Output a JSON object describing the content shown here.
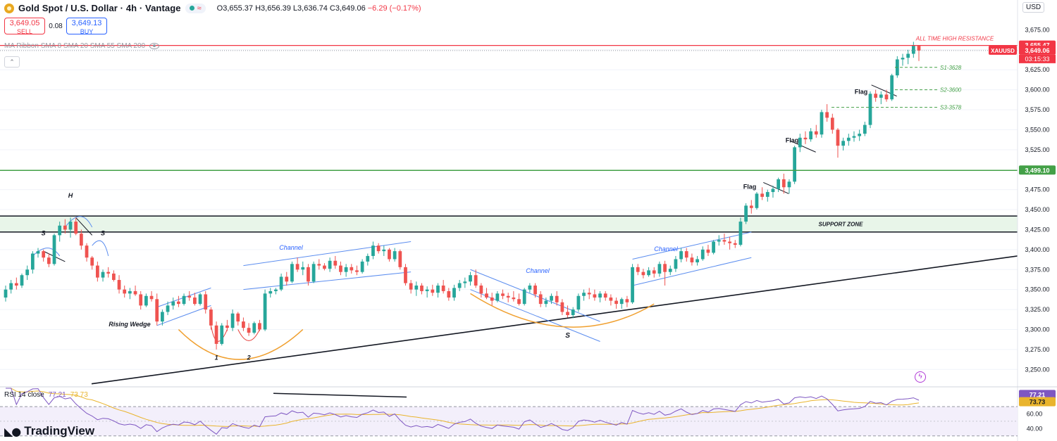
{
  "header": {
    "title": "Gold Spot / U.S. Dollar · 4h · Vantage",
    "open": "O3,655.37",
    "high": "H3,656.39",
    "low": "L3,636.74",
    "close": "C3,649.06",
    "change": "−6.29 (−0.17%)"
  },
  "trade": {
    "sell_price": "3,649.05",
    "sell_label": "SELL",
    "spread": "0.08",
    "buy_price": "3,649.13",
    "buy_label": "BUY"
  },
  "ma_legend": "MA Ribbon SMA 8 SMA 20 SMA 55 SMA 200",
  "currency": "USD",
  "rsi_legend": {
    "label": "RSI 14 close",
    "rsi": "77.21",
    "ma": "73.73"
  },
  "brand": "TradingView",
  "colors": {
    "up": "#26a69a",
    "down": "#ef5350",
    "resistance": "#f23645",
    "support": "#43a047",
    "rsi": "#7e57c2",
    "rsi_ma": "#e9b42d",
    "channel": "#5b8def",
    "pattern": "#f0a030"
  },
  "chart_data": {
    "type": "candlestick",
    "symbol": "XAUUSD",
    "interval": "4h",
    "ylim": [
      3230,
      3700
    ],
    "y_ticks": [
      "3,650.00",
      "3,625.00",
      "3,600.00",
      "3,575.00",
      "3,550.00",
      "3,525.00",
      "3,475.00",
      "3,450.00",
      "3,425.00",
      "3,400.00",
      "3,375.00",
      "3,350.00",
      "3,325.00",
      "3,300.00",
      "3,275.00",
      "3,250.00"
    ],
    "y_tick_values": [
      3650,
      3625,
      3600,
      3575,
      3550,
      3525,
      3475,
      3450,
      3425,
      3400,
      3375,
      3350,
      3325,
      3300,
      3275,
      3250
    ],
    "top_tick": "3,675.00",
    "top_tick_value": 3675,
    "candles": [
      [
        3340,
        3355,
        3335,
        3350
      ],
      [
        3350,
        3362,
        3345,
        3358
      ],
      [
        3358,
        3365,
        3350,
        3355
      ],
      [
        3355,
        3370,
        3352,
        3368
      ],
      [
        3368,
        3380,
        3362,
        3375
      ],
      [
        3375,
        3398,
        3370,
        3395
      ],
      [
        3395,
        3402,
        3390,
        3398
      ],
      [
        3398,
        3400,
        3385,
        3390
      ],
      [
        3390,
        3395,
        3378,
        3382
      ],
      [
        3382,
        3420,
        3380,
        3418
      ],
      [
        3418,
        3435,
        3410,
        3430
      ],
      [
        3430,
        3438,
        3420,
        3425
      ],
      [
        3425,
        3440,
        3415,
        3435
      ],
      [
        3435,
        3440,
        3418,
        3420
      ],
      [
        3420,
        3425,
        3400,
        3405
      ],
      [
        3405,
        3408,
        3385,
        3390
      ],
      [
        3390,
        3392,
        3375,
        3380
      ],
      [
        3380,
        3385,
        3360,
        3365
      ],
      [
        3365,
        3375,
        3360,
        3372
      ],
      [
        3372,
        3378,
        3365,
        3370
      ],
      [
        3370,
        3374,
        3360,
        3362
      ],
      [
        3362,
        3368,
        3345,
        3350
      ],
      [
        3350,
        3355,
        3340,
        3345
      ],
      [
        3345,
        3352,
        3338,
        3348
      ],
      [
        3348,
        3355,
        3342,
        3344
      ],
      [
        3344,
        3348,
        3325,
        3330
      ],
      [
        3330,
        3345,
        3328,
        3342
      ],
      [
        3342,
        3348,
        3335,
        3338
      ],
      [
        3338,
        3345,
        3305,
        3310
      ],
      [
        3310,
        3325,
        3305,
        3322
      ],
      [
        3322,
        3335,
        3318,
        3330
      ],
      [
        3330,
        3340,
        3325,
        3335
      ],
      [
        3335,
        3342,
        3328,
        3332
      ],
      [
        3332,
        3345,
        3330,
        3342
      ],
      [
        3342,
        3348,
        3336,
        3340
      ],
      [
        3340,
        3346,
        3330,
        3332
      ],
      [
        3332,
        3346,
        3330,
        3344
      ],
      [
        3344,
        3348,
        3320,
        3325
      ],
      [
        3325,
        3328,
        3300,
        3305
      ],
      [
        3305,
        3310,
        3275,
        3282
      ],
      [
        3282,
        3308,
        3280,
        3305
      ],
      [
        3305,
        3312,
        3298,
        3302
      ],
      [
        3302,
        3325,
        3298,
        3320
      ],
      [
        3320,
        3322,
        3305,
        3310
      ],
      [
        3310,
        3315,
        3298,
        3302
      ],
      [
        3302,
        3308,
        3292,
        3296
      ],
      [
        3296,
        3310,
        3294,
        3308
      ],
      [
        3308,
        3312,
        3298,
        3300
      ],
      [
        3300,
        3350,
        3298,
        3345
      ],
      [
        3345,
        3352,
        3340,
        3348
      ],
      [
        3348,
        3352,
        3344,
        3350
      ],
      [
        3350,
        3370,
        3348,
        3366
      ],
      [
        3366,
        3372,
        3355,
        3360
      ],
      [
        3360,
        3385,
        3358,
        3382
      ],
      [
        3382,
        3390,
        3372,
        3375
      ],
      [
        3375,
        3385,
        3368,
        3378
      ],
      [
        3378,
        3382,
        3355,
        3360
      ],
      [
        3360,
        3385,
        3358,
        3382
      ],
      [
        3382,
        3388,
        3375,
        3380
      ],
      [
        3380,
        3383,
        3374,
        3376
      ],
      [
        3376,
        3390,
        3372,
        3386
      ],
      [
        3386,
        3392,
        3376,
        3380
      ],
      [
        3380,
        3385,
        3368,
        3372
      ],
      [
        3372,
        3382,
        3366,
        3378
      ],
      [
        3378,
        3382,
        3370,
        3374
      ],
      [
        3374,
        3380,
        3368,
        3372
      ],
      [
        3372,
        3388,
        3370,
        3385
      ],
      [
        3385,
        3395,
        3380,
        3392
      ],
      [
        3392,
        3410,
        3388,
        3405
      ],
      [
        3405,
        3408,
        3395,
        3398
      ],
      [
        3398,
        3405,
        3392,
        3400
      ],
      [
        3400,
        3402,
        3385,
        3388
      ],
      [
        3388,
        3402,
        3385,
        3398
      ],
      [
        3398,
        3400,
        3375,
        3378
      ],
      [
        3378,
        3382,
        3355,
        3358
      ],
      [
        3358,
        3362,
        3345,
        3350
      ],
      [
        3350,
        3360,
        3342,
        3355
      ],
      [
        3355,
        3358,
        3344,
        3348
      ],
      [
        3348,
        3354,
        3340,
        3350
      ],
      [
        3350,
        3356,
        3342,
        3346
      ],
      [
        3346,
        3358,
        3340,
        3355
      ],
      [
        3355,
        3362,
        3345,
        3348
      ],
      [
        3348,
        3352,
        3336,
        3340
      ],
      [
        3340,
        3356,
        3336,
        3352
      ],
      [
        3352,
        3362,
        3348,
        3358
      ],
      [
        3358,
        3365,
        3352,
        3360
      ],
      [
        3360,
        3372,
        3355,
        3368
      ],
      [
        3368,
        3375,
        3352,
        3355
      ],
      [
        3355,
        3358,
        3340,
        3345
      ],
      [
        3345,
        3352,
        3338,
        3340
      ],
      [
        3340,
        3346,
        3330,
        3336
      ],
      [
        3336,
        3348,
        3334,
        3345
      ],
      [
        3345,
        3350,
        3338,
        3342
      ],
      [
        3342,
        3346,
        3334,
        3340
      ],
      [
        3340,
        3348,
        3335,
        3338
      ],
      [
        3338,
        3345,
        3330,
        3332
      ],
      [
        3332,
        3352,
        3330,
        3350
      ],
      [
        3350,
        3358,
        3346,
        3355
      ],
      [
        3355,
        3358,
        3340,
        3344
      ],
      [
        3344,
        3348,
        3328,
        3332
      ],
      [
        3332,
        3340,
        3328,
        3336
      ],
      [
        3336,
        3345,
        3332,
        3342
      ],
      [
        3342,
        3348,
        3330,
        3334
      ],
      [
        3334,
        3338,
        3318,
        3322
      ],
      [
        3322,
        3330,
        3315,
        3318
      ],
      [
        3318,
        3328,
        3314,
        3325
      ],
      [
        3325,
        3345,
        3322,
        3342
      ],
      [
        3342,
        3350,
        3336,
        3346
      ],
      [
        3346,
        3352,
        3338,
        3344
      ],
      [
        3344,
        3350,
        3336,
        3340
      ],
      [
        3340,
        3348,
        3334,
        3345
      ],
      [
        3345,
        3348,
        3336,
        3340
      ],
      [
        3340,
        3344,
        3330,
        3336
      ],
      [
        3336,
        3340,
        3326,
        3332
      ],
      [
        3332,
        3340,
        3326,
        3338
      ],
      [
        3338,
        3342,
        3328,
        3334
      ],
      [
        3334,
        3382,
        3332,
        3378
      ],
      [
        3378,
        3382,
        3368,
        3372
      ],
      [
        3372,
        3376,
        3364,
        3368
      ],
      [
        3368,
        3378,
        3366,
        3374
      ],
      [
        3374,
        3378,
        3365,
        3370
      ],
      [
        3370,
        3385,
        3366,
        3382
      ],
      [
        3382,
        3386,
        3355,
        3372
      ],
      [
        3372,
        3380,
        3368,
        3376
      ],
      [
        3376,
        3392,
        3372,
        3388
      ],
      [
        3388,
        3402,
        3384,
        3398
      ],
      [
        3398,
        3402,
        3385,
        3390
      ],
      [
        3390,
        3395,
        3380,
        3384
      ],
      [
        3384,
        3392,
        3380,
        3388
      ],
      [
        3388,
        3404,
        3386,
        3400
      ],
      [
        3400,
        3406,
        3392,
        3396
      ],
      [
        3396,
        3412,
        3394,
        3410
      ],
      [
        3410,
        3418,
        3405,
        3412
      ],
      [
        3412,
        3420,
        3406,
        3410
      ],
      [
        3410,
        3416,
        3400,
        3408
      ],
      [
        3408,
        3412,
        3402,
        3406
      ],
      [
        3406,
        3440,
        3404,
        3435
      ],
      [
        3435,
        3458,
        3432,
        3455
      ],
      [
        3455,
        3462,
        3445,
        3452
      ],
      [
        3452,
        3472,
        3450,
        3470
      ],
      [
        3470,
        3478,
        3462,
        3466
      ],
      [
        3466,
        3475,
        3460,
        3472
      ],
      [
        3472,
        3480,
        3465,
        3476
      ],
      [
        3476,
        3490,
        3472,
        3488
      ],
      [
        3488,
        3495,
        3470,
        3478
      ],
      [
        3478,
        3488,
        3470,
        3485
      ],
      [
        3485,
        3530,
        3482,
        3528
      ],
      [
        3528,
        3545,
        3522,
        3540
      ],
      [
        3540,
        3548,
        3532,
        3538
      ],
      [
        3538,
        3552,
        3535,
        3548
      ],
      [
        3548,
        3556,
        3540,
        3544
      ],
      [
        3544,
        3575,
        3540,
        3572
      ],
      [
        3572,
        3582,
        3560,
        3565
      ],
      [
        3565,
        3570,
        3545,
        3550
      ],
      [
        3550,
        3552,
        3515,
        3530
      ],
      [
        3530,
        3540,
        3524,
        3536
      ],
      [
        3536,
        3545,
        3530,
        3540
      ],
      [
        3540,
        3548,
        3535,
        3542
      ],
      [
        3542,
        3550,
        3536,
        3545
      ],
      [
        3545,
        3560,
        3542,
        3556
      ],
      [
        3556,
        3598,
        3552,
        3595
      ],
      [
        3595,
        3600,
        3585,
        3590
      ],
      [
        3590,
        3598,
        3582,
        3594
      ],
      [
        3594,
        3600,
        3585,
        3588
      ],
      [
        3588,
        3620,
        3586,
        3618
      ],
      [
        3618,
        3642,
        3615,
        3638
      ],
      [
        3638,
        3645,
        3630,
        3640
      ],
      [
        3640,
        3650,
        3632,
        3645
      ],
      [
        3645,
        3660,
        3640,
        3655
      ],
      [
        3655,
        3656,
        3636,
        3649
      ]
    ],
    "levels": [
      {
        "price": 3655.47,
        "label": "3,655.47",
        "note": "ALL TIME HIGH RESISTANCE"
      },
      {
        "price": 3649.06,
        "label": "3,649.06",
        "note": "XAUUSD",
        "countdown": "03:15:33"
      },
      {
        "price": 3499.1,
        "label": "3,499.10"
      },
      {
        "price": 3628,
        "note": "S1-3628"
      },
      {
        "price": 3600,
        "note": "S2-3600"
      },
      {
        "price": 3578,
        "note": "S3-3578"
      }
    ],
    "support_zone": {
      "low": 3422,
      "high": 3442,
      "label": "SUPPORT ZONE"
    },
    "annotations": {
      "head": "H",
      "shoulder": "S",
      "rising_wedge": "Rising Wedge",
      "channel": "Channel",
      "flag": "Flag",
      "bottom_1": "1",
      "bottom_2": "2",
      "base": "S"
    },
    "rsi": {
      "ticks": [
        "60.00",
        "40.00"
      ],
      "tick_values": [
        60,
        40
      ],
      "ylim": [
        25,
        95
      ],
      "value": "77.21",
      "ma_value": "73.73",
      "overbought": 70,
      "oversold": 30
    }
  }
}
